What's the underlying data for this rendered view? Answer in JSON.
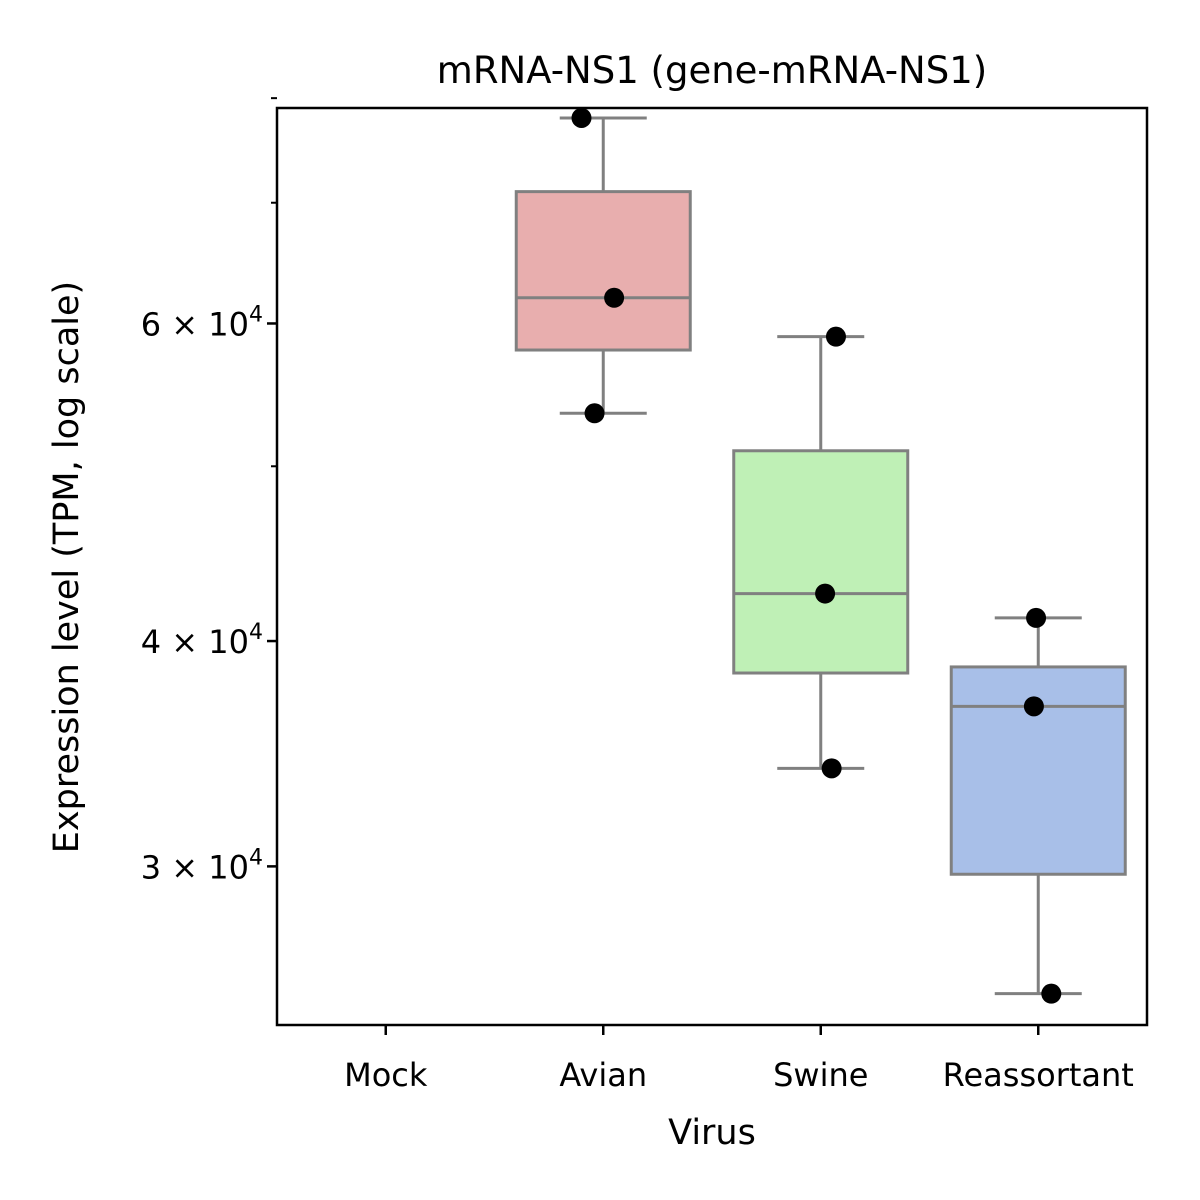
{
  "chart_data": {
    "type": "box",
    "title": "mRNA-NS1 (gene-mRNA-NS1)",
    "xlabel": "Virus",
    "ylabel": "Expression level (TPM, log scale)",
    "yscale": "log",
    "ylim": [
      24500,
      79000
    ],
    "categories": [
      "Mock",
      "Avian",
      "Swine",
      "Reassortant"
    ],
    "yticks": [
      {
        "value": 30000,
        "label": "3 × 10",
        "exp": "4"
      },
      {
        "value": 40000,
        "label": "4 × 10",
        "exp": "4"
      },
      {
        "value": 60000,
        "label": "6 × 10",
        "exp": "4"
      }
    ],
    "minor_yticks": [
      50000,
      70000,
      80000
    ],
    "boxes": [
      {
        "category": "Mock",
        "color": null,
        "min": null,
        "q1": null,
        "median": null,
        "q3": null,
        "max": null
      },
      {
        "category": "Avian",
        "color": "#e8aeae",
        "min": 53500,
        "q1": 58000,
        "median": 62000,
        "q3": 71000,
        "max": 78000
      },
      {
        "category": "Swine",
        "color": "#bff0b6",
        "min": 34000,
        "q1": 38400,
        "median": 42500,
        "q3": 51000,
        "max": 59000
      },
      {
        "category": "Reassortant",
        "color": "#a8bfe8",
        "min": 25500,
        "q1": 29700,
        "median": 36800,
        "q3": 38700,
        "max": 41200
      }
    ],
    "points": [
      {
        "category": "Avian",
        "y": 78000,
        "jitter": -0.1
      },
      {
        "category": "Avian",
        "y": 62000,
        "jitter": 0.05
      },
      {
        "category": "Avian",
        "y": 53500,
        "jitter": -0.04
      },
      {
        "category": "Swine",
        "y": 59000,
        "jitter": 0.07
      },
      {
        "category": "Swine",
        "y": 42500,
        "jitter": 0.02
      },
      {
        "category": "Swine",
        "y": 34000,
        "jitter": 0.05
      },
      {
        "category": "Reassortant",
        "y": 41200,
        "jitter": -0.01
      },
      {
        "category": "Reassortant",
        "y": 36800,
        "jitter": -0.02
      },
      {
        "category": "Reassortant",
        "y": 25500,
        "jitter": 0.06
      }
    ],
    "colors": {
      "box_edge": "#808080",
      "points": "#000000",
      "axes": "#000000"
    },
    "grid": false,
    "legend": "none"
  }
}
